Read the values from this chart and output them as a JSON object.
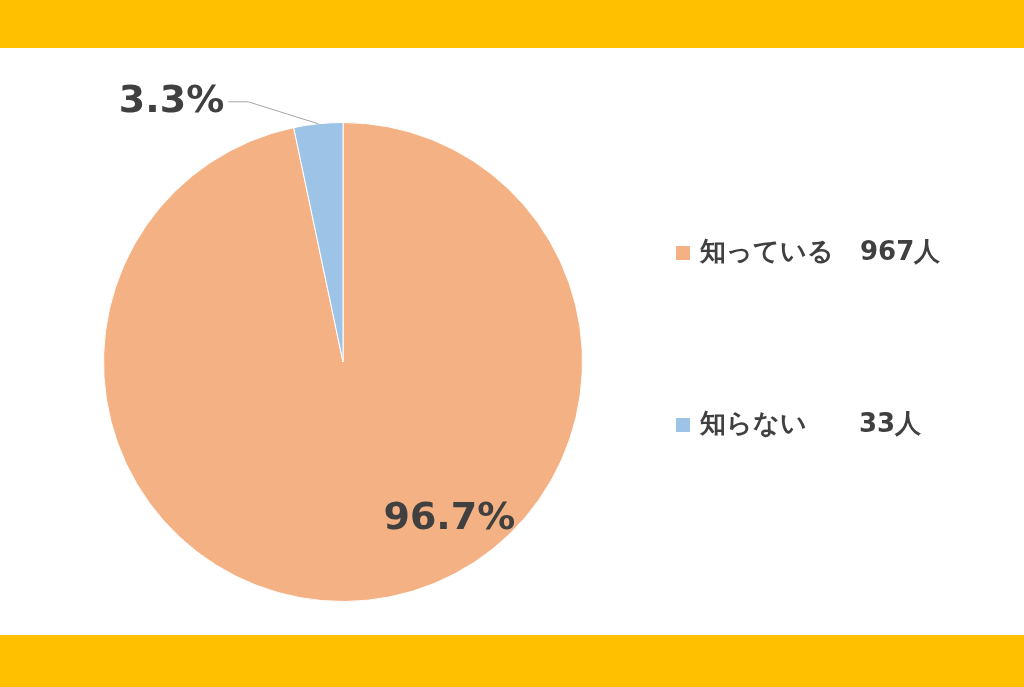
{
  "chart_data": {
    "type": "pie",
    "categories": [
      "知っている　967人",
      "知らない　　33人"
    ],
    "values": [
      96.7,
      3.3
    ],
    "value_labels": [
      "96.7%",
      "3.3%"
    ],
    "colors": [
      "#f4b183",
      "#9dc3e6"
    ],
    "legend": "right"
  }
}
